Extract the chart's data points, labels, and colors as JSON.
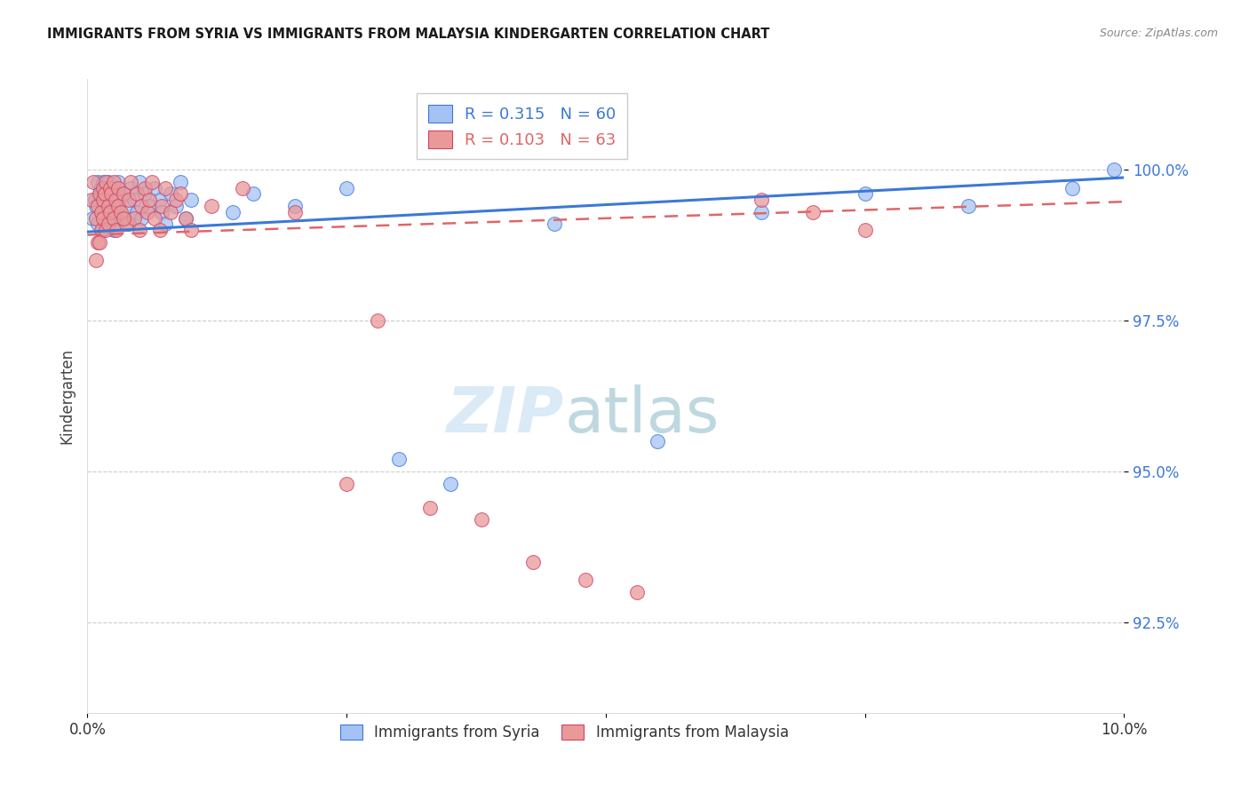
{
  "title": "IMMIGRANTS FROM SYRIA VS IMMIGRANTS FROM MALAYSIA KINDERGARTEN CORRELATION CHART",
  "source": "Source: ZipAtlas.com",
  "ylabel": "Kindergarten",
  "ytick_vals": [
    92.5,
    95.0,
    97.5,
    100.0
  ],
  "xlim": [
    0.0,
    10.0
  ],
  "ylim": [
    91.0,
    101.5
  ],
  "legend_r_syria": "R = 0.315",
  "legend_n_syria": "N = 60",
  "legend_r_malaysia": "R = 0.103",
  "legend_n_malaysia": "N = 63",
  "color_syria_face": "#a4c2f4",
  "color_syria_edge": "#3c78d8",
  "color_malaysia_face": "#ea9999",
  "color_malaysia_edge": "#cc4466",
  "color_trendline_syria": "#3c78d8",
  "color_trendline_malaysia": "#e06666",
  "watermark_zip": "ZIP",
  "watermark_atlas": "atlas",
  "watermark_color_zip": "#cfe2f3",
  "watermark_color_atlas": "#a2c4c9",
  "syria_x": [
    0.05,
    0.07,
    0.08,
    0.1,
    0.1,
    0.12,
    0.13,
    0.13,
    0.14,
    0.15,
    0.15,
    0.15,
    0.16,
    0.17,
    0.18,
    0.18,
    0.2,
    0.2,
    0.22,
    0.22,
    0.23,
    0.25,
    0.25,
    0.27,
    0.28,
    0.3,
    0.3,
    0.32,
    0.35,
    0.38,
    0.4,
    0.42,
    0.45,
    0.48,
    0.5,
    0.52,
    0.55,
    0.6,
    0.65,
    0.7,
    0.72,
    0.75,
    0.8,
    0.85,
    0.9,
    0.95,
    1.0,
    1.4,
    1.6,
    2.0,
    2.5,
    3.0,
    3.5,
    4.5,
    5.5,
    6.5,
    7.5,
    8.5,
    9.5,
    9.9
  ],
  "syria_y": [
    99.2,
    99.5,
    99.4,
    99.8,
    99.1,
    99.6,
    99.3,
    99.7,
    99.0,
    99.5,
    99.8,
    99.2,
    99.6,
    99.4,
    99.1,
    99.7,
    99.3,
    99.8,
    99.5,
    99.2,
    99.6,
    99.0,
    99.4,
    99.7,
    99.3,
    99.5,
    99.8,
    99.2,
    99.6,
    99.4,
    99.1,
    99.7,
    99.5,
    99.3,
    99.8,
    99.2,
    99.6,
    99.4,
    99.7,
    99.5,
    99.3,
    99.1,
    99.6,
    99.4,
    99.8,
    99.2,
    99.5,
    99.3,
    99.6,
    99.4,
    99.7,
    95.2,
    94.8,
    99.1,
    95.5,
    99.3,
    99.6,
    99.4,
    99.7,
    100.0
  ],
  "malaysia_x": [
    0.04,
    0.06,
    0.08,
    0.1,
    0.1,
    0.12,
    0.13,
    0.13,
    0.15,
    0.15,
    0.15,
    0.17,
    0.18,
    0.18,
    0.2,
    0.2,
    0.22,
    0.22,
    0.23,
    0.25,
    0.25,
    0.27,
    0.28,
    0.3,
    0.3,
    0.32,
    0.35,
    0.37,
    0.4,
    0.42,
    0.45,
    0.48,
    0.5,
    0.52,
    0.55,
    0.58,
    0.6,
    0.62,
    0.65,
    0.7,
    0.72,
    0.75,
    0.8,
    0.85,
    0.9,
    0.95,
    1.0,
    1.2,
    1.5,
    2.0,
    2.5,
    2.8,
    3.3,
    3.8,
    4.3,
    4.8,
    5.3,
    6.5,
    7.0,
    7.5,
    0.08,
    0.12,
    0.35
  ],
  "malaysia_y": [
    99.5,
    99.8,
    99.2,
    98.8,
    99.4,
    99.6,
    99.0,
    99.3,
    99.7,
    99.5,
    99.2,
    99.6,
    99.0,
    99.8,
    99.4,
    99.1,
    99.7,
    99.3,
    99.6,
    99.2,
    99.8,
    99.5,
    99.0,
    99.4,
    99.7,
    99.3,
    99.6,
    99.1,
    99.5,
    99.8,
    99.2,
    99.6,
    99.0,
    99.4,
    99.7,
    99.3,
    99.5,
    99.8,
    99.2,
    99.0,
    99.4,
    99.7,
    99.3,
    99.5,
    99.6,
    99.2,
    99.0,
    99.4,
    99.7,
    99.3,
    94.8,
    97.5,
    94.4,
    94.2,
    93.5,
    93.2,
    93.0,
    99.5,
    99.3,
    99.0,
    98.5,
    98.8,
    99.2
  ]
}
